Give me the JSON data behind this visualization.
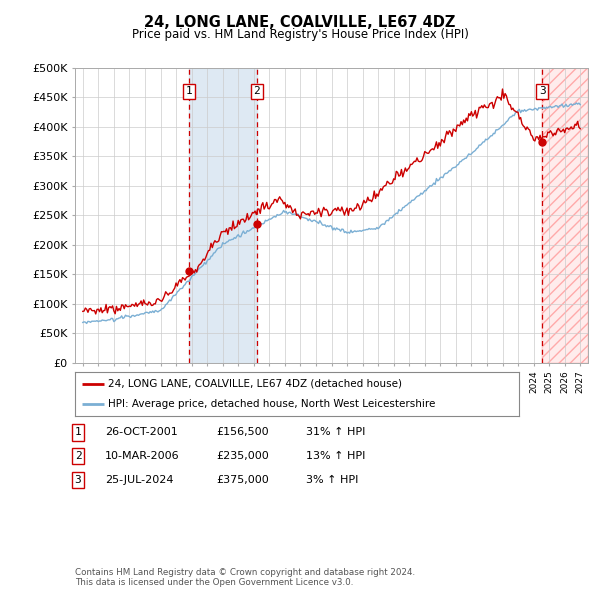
{
  "title": "24, LONG LANE, COALVILLE, LE67 4DZ",
  "subtitle": "Price paid vs. HM Land Registry's House Price Index (HPI)",
  "ylabel_ticks": [
    "£0",
    "£50K",
    "£100K",
    "£150K",
    "£200K",
    "£250K",
    "£300K",
    "£350K",
    "£400K",
    "£450K",
    "£500K"
  ],
  "ytick_values": [
    0,
    50000,
    100000,
    150000,
    200000,
    250000,
    300000,
    350000,
    400000,
    450000,
    500000
  ],
  "ylim": [
    0,
    500000
  ],
  "xlim_start": 1994.5,
  "xlim_end": 2027.5,
  "sale_dates_num": [
    2001.82,
    2006.19,
    2024.56
  ],
  "sale_prices": [
    156500,
    235000,
    375000
  ],
  "sale_labels": [
    "1",
    "2",
    "3"
  ],
  "sale_date_strs": [
    "26-OCT-2001",
    "10-MAR-2006",
    "25-JUL-2024"
  ],
  "sale_prices_str": [
    "£156,500",
    "£235,000",
    "£375,000"
  ],
  "sale_pct_hpi": [
    "31%",
    "13%",
    "3%"
  ],
  "red_line_color": "#cc0000",
  "blue_line_color": "#7bafd4",
  "shaded_region_color": "#d6e4f0",
  "hatch_region_color": "#ffe0e0",
  "legend_label_red": "24, LONG LANE, COALVILLE, LE67 4DZ (detached house)",
  "legend_label_blue": "HPI: Average price, detached house, North West Leicestershire",
  "footer_text": "Contains HM Land Registry data © Crown copyright and database right 2024.\nThis data is licensed under the Open Government Licence v3.0.",
  "background_color": "#ffffff",
  "grid_color": "#cccccc",
  "xtick_years": [
    1995,
    1996,
    1997,
    1998,
    1999,
    2000,
    2001,
    2002,
    2003,
    2004,
    2005,
    2006,
    2007,
    2008,
    2009,
    2010,
    2011,
    2012,
    2013,
    2014,
    2015,
    2016,
    2017,
    2018,
    2019,
    2020,
    2021,
    2022,
    2023,
    2024,
    2025,
    2026,
    2027
  ]
}
